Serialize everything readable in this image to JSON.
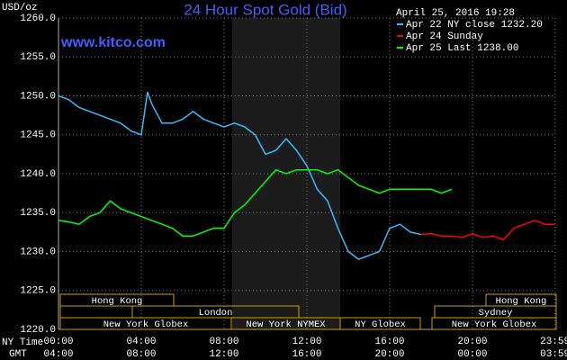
{
  "chart_data": {
    "type": "line",
    "title": "24 Hour Spot Gold (Bid)",
    "timestamp": "April 25, 2016 19:28",
    "y_label": "USD/oz",
    "watermark": "www.kitco.com",
    "x_label": "NY Time",
    "x2_label": "GMT",
    "xlim": [
      0,
      24
    ],
    "ylim": [
      1220,
      1260
    ],
    "xticks": [
      {
        "value": 0,
        "label": "00:00"
      },
      {
        "value": 4,
        "label": "04:00"
      },
      {
        "value": 8,
        "label": "08:00"
      },
      {
        "value": 12,
        "label": "12:00"
      },
      {
        "value": 16,
        "label": "16:00"
      },
      {
        "value": 20,
        "label": "20:00"
      },
      {
        "value": 23.983,
        "label": "23:59"
      }
    ],
    "x2ticks": [
      "04:00",
      "08:00",
      "12:00",
      "16:00",
      "20:00",
      "00:00",
      "03:59"
    ],
    "yticks": [
      {
        "value": 1220,
        "label": "1220.0"
      },
      {
        "value": 1225,
        "label": "1225.0"
      },
      {
        "value": 1230,
        "label": "1230.0"
      },
      {
        "value": 1235,
        "label": "1235.0"
      },
      {
        "value": 1240,
        "label": "1240.0"
      },
      {
        "value": 1245,
        "label": "1245.0"
      },
      {
        "value": 1250,
        "label": "1250.0"
      },
      {
        "value": 1255,
        "label": "1255.0"
      },
      {
        "value": 1260,
        "label": "1260.0"
      }
    ],
    "grid": true,
    "sessions": [
      "Hong Kong",
      "London",
      "New York Globex",
      "New York NYMEX",
      "NY Globex",
      "Sydney",
      "Hong Kong",
      "New York Globex"
    ],
    "series": [
      {
        "name": "Apr 22 NY close 1232.20",
        "color": "#33bbff",
        "x": [
          0,
          0.5,
          1,
          1.5,
          2,
          2.5,
          3,
          3.5,
          4,
          4.3,
          4.5,
          5,
          5.5,
          6,
          6.5,
          7,
          7.5,
          8,
          8.5,
          9,
          9.5,
          10,
          10.5,
          11,
          11.5,
          12,
          12.5,
          13,
          13.5,
          14,
          14.5,
          15,
          15.5,
          16,
          16.5,
          17,
          17.5
        ],
        "values": [
          1250.0,
          1249.5,
          1248.5,
          1248.0,
          1247.5,
          1247.0,
          1246.5,
          1245.5,
          1245.0,
          1250.5,
          1249.0,
          1246.5,
          1246.5,
          1247.0,
          1248.0,
          1247.0,
          1246.5,
          1246.0,
          1246.5,
          1246.0,
          1245.0,
          1242.5,
          1243.0,
          1244.5,
          1243.0,
          1241.0,
          1238.0,
          1236.5,
          1233.0,
          1230.0,
          1229.0,
          1229.5,
          1230.0,
          1233.0,
          1233.5,
          1232.5,
          1232.2
        ]
      },
      {
        "name": "Apr 24 Sunday",
        "color": "#ff0000",
        "x": [
          17.5,
          18,
          18.5,
          19,
          19.5,
          20,
          20.5,
          21,
          21.5,
          22,
          22.5,
          23,
          23.5,
          23.983
        ],
        "values": [
          1232.2,
          1232.3,
          1232.0,
          1232.0,
          1231.8,
          1232.3,
          1231.8,
          1232.0,
          1231.5,
          1233.0,
          1233.5,
          1234.0,
          1233.5,
          1233.5
        ]
      },
      {
        "name": "Apr 25 Last 1238.00",
        "color": "#00ff00",
        "x": [
          0,
          0.5,
          1,
          1.5,
          2,
          2.5,
          3,
          3.5,
          4,
          4.5,
          5,
          5.5,
          6,
          6.5,
          7,
          7.5,
          8,
          8.5,
          9,
          9.5,
          10,
          10.5,
          11,
          11.5,
          12,
          12.5,
          13,
          13.5,
          14,
          14.5,
          15,
          15.5,
          16,
          16.5,
          17,
          17.5,
          18,
          18.5,
          19
        ],
        "values": [
          1234.0,
          1233.8,
          1233.5,
          1234.5,
          1235.0,
          1236.5,
          1235.5,
          1235.0,
          1234.5,
          1234.0,
          1233.5,
          1233.0,
          1232.0,
          1232.0,
          1232.5,
          1233.0,
          1233.0,
          1235.0,
          1236.0,
          1237.5,
          1239.0,
          1240.5,
          1240.0,
          1240.5,
          1240.5,
          1240.5,
          1240.0,
          1240.5,
          1239.5,
          1238.5,
          1238.0,
          1237.5,
          1238.0,
          1238.0,
          1238.0,
          1238.0,
          1238.0,
          1237.5,
          1238.0
        ]
      }
    ]
  }
}
